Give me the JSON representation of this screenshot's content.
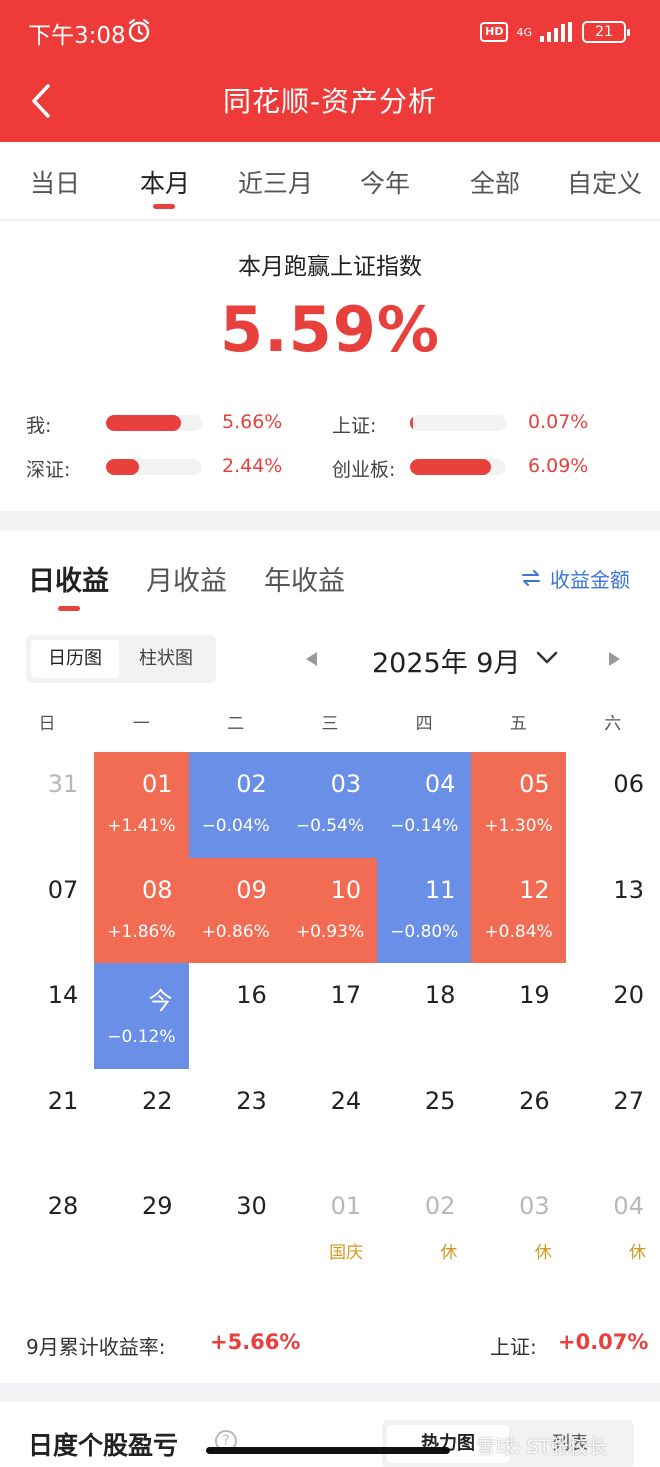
{
  "status_bar": {
    "time": "下午3:08",
    "hd": "HD",
    "network": "4G",
    "battery": "21"
  },
  "header": {
    "title": "同花顺-资产分析"
  },
  "tabs": [
    {
      "label": "当日"
    },
    {
      "label": "本月",
      "active": true
    },
    {
      "label": "近三月"
    },
    {
      "label": "今年"
    },
    {
      "label": "全部"
    },
    {
      "label": "自定义"
    }
  ],
  "summary": {
    "heading": "本月跑赢上证指数",
    "value": "5.59%",
    "comparisons": [
      {
        "label": "我:",
        "value": "5.66%",
        "fill": 0.78
      },
      {
        "label": "上证:",
        "value": "0.07%",
        "fill": 0.02
      },
      {
        "label": "深证:",
        "value": "2.44%",
        "fill": 0.34
      },
      {
        "label": "创业板:",
        "value": "6.09%",
        "fill": 0.84
      }
    ]
  },
  "returns": {
    "tabs": [
      {
        "label": "日收益",
        "active": true
      },
      {
        "label": "月收益"
      },
      {
        "label": "年收益"
      }
    ],
    "switch_label": "收益金额",
    "view_options": [
      {
        "label": "日历图",
        "active": true
      },
      {
        "label": "柱状图"
      }
    ],
    "month": "2025年 9月",
    "weekdays": [
      "日",
      "一",
      "二",
      "三",
      "四",
      "五",
      "六"
    ],
    "weeks": [
      [
        {
          "day": "31",
          "muted": true
        },
        {
          "day": "01",
          "pct": "+1.41%",
          "kind": "up"
        },
        {
          "day": "02",
          "pct": "−0.04%",
          "kind": "down"
        },
        {
          "day": "03",
          "pct": "−0.54%",
          "kind": "down"
        },
        {
          "day": "04",
          "pct": "−0.14%",
          "kind": "down"
        },
        {
          "day": "05",
          "pct": "+1.30%",
          "kind": "up"
        },
        {
          "day": "06"
        }
      ],
      [
        {
          "day": "07"
        },
        {
          "day": "08",
          "pct": "+1.86%",
          "kind": "up"
        },
        {
          "day": "09",
          "pct": "+0.86%",
          "kind": "up"
        },
        {
          "day": "10",
          "pct": "+0.93%",
          "kind": "up"
        },
        {
          "day": "11",
          "pct": "−0.80%",
          "kind": "down"
        },
        {
          "day": "12",
          "pct": "+0.84%",
          "kind": "up"
        },
        {
          "day": "13"
        }
      ],
      [
        {
          "day": "14"
        },
        {
          "day": "今",
          "pct": "−0.12%",
          "kind": "down"
        },
        {
          "day": "16"
        },
        {
          "day": "17"
        },
        {
          "day": "18"
        },
        {
          "day": "19"
        },
        {
          "day": "20"
        }
      ],
      [
        {
          "day": "21"
        },
        {
          "day": "22"
        },
        {
          "day": "23"
        },
        {
          "day": "24"
        },
        {
          "day": "25"
        },
        {
          "day": "26"
        },
        {
          "day": "27"
        }
      ],
      [
        {
          "day": "28"
        },
        {
          "day": "29"
        },
        {
          "day": "30"
        },
        {
          "day": "01",
          "muted": true,
          "tag": "国庆"
        },
        {
          "day": "02",
          "muted": true,
          "tag": "休"
        },
        {
          "day": "03",
          "muted": true,
          "tag": "休"
        },
        {
          "day": "04",
          "muted": true,
          "tag": "休"
        }
      ]
    ],
    "cumulative_label": "9月累计收益率:",
    "cumulative_value": "+5.66%",
    "index_label": "上证:",
    "index_value": "+0.07%"
  },
  "bottom": {
    "title": "日度个股盈亏",
    "options": [
      {
        "label": "热力图",
        "active": true
      },
      {
        "label": "列表"
      }
    ]
  },
  "watermark": "雪球: ST张校长",
  "colors": {
    "brand_red": "#ee3a38",
    "gain": "#f26c53",
    "loss": "#6a8fe6",
    "holiday": "#d49a1c",
    "link_blue": "#3d74d8"
  }
}
